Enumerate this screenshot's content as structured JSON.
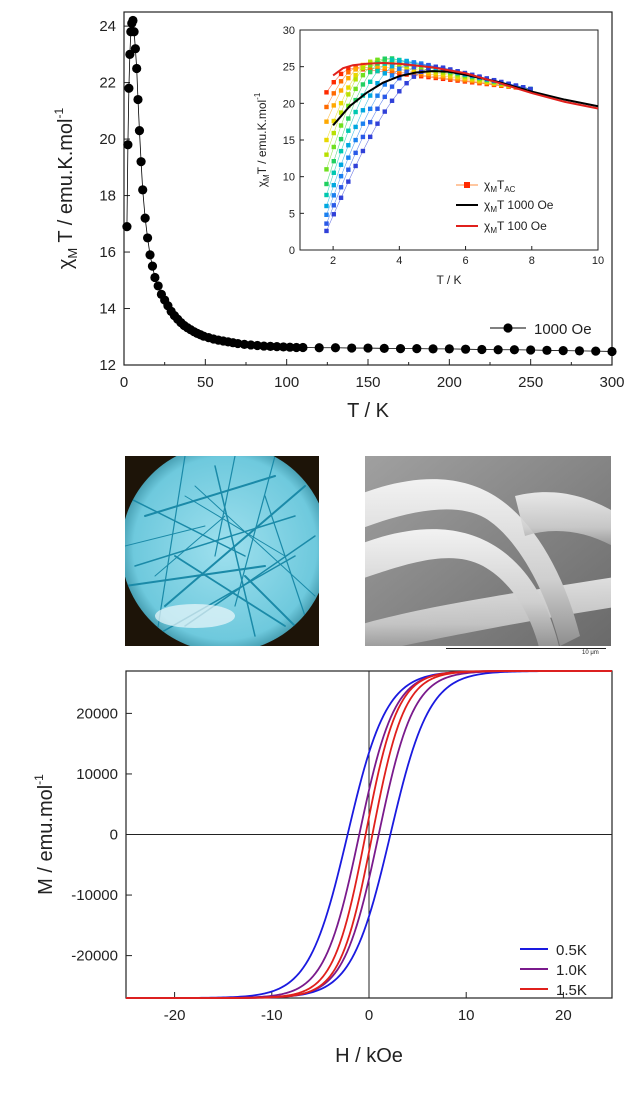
{
  "chart_data": [
    {
      "type": "scatter",
      "title": "",
      "xlabel": "T / K",
      "ylabel_main": "χ",
      "ylabel_sub": "M",
      "ylabel_rest": " T / emu.K.mol",
      "ylabel_sup": "-1",
      "xlim": [
        0,
        300
      ],
      "ylim": [
        12,
        24.5
      ],
      "xticks": [
        0,
        50,
        100,
        150,
        200,
        250,
        300
      ],
      "yticks": [
        12,
        14,
        16,
        18,
        20,
        22,
        24
      ],
      "legend_placement": "bottom-right",
      "series": [
        {
          "name": "1000 Oe",
          "color": "#000000",
          "points": [
            [
              1.8,
              16.9
            ],
            [
              2.4,
              19.8
            ],
            [
              3.0,
              21.8
            ],
            [
              3.6,
              23.0
            ],
            [
              4.2,
              23.8
            ],
            [
              4.8,
              24.1
            ],
            [
              5.5,
              24.2
            ],
            [
              6.2,
              23.8
            ],
            [
              7.0,
              23.2
            ],
            [
              7.8,
              22.5
            ],
            [
              8.6,
              21.4
            ],
            [
              9.5,
              20.3
            ],
            [
              10.5,
              19.2
            ],
            [
              11.5,
              18.2
            ],
            [
              13,
              17.2
            ],
            [
              14.5,
              16.5
            ],
            [
              16,
              15.9
            ],
            [
              17.5,
              15.5
            ],
            [
              19,
              15.1
            ],
            [
              21,
              14.8
            ],
            [
              23,
              14.5
            ],
            [
              25,
              14.3
            ],
            [
              27,
              14.1
            ],
            [
              29,
              13.9
            ],
            [
              31,
              13.75
            ],
            [
              33,
              13.62
            ],
            [
              35,
              13.5
            ],
            [
              37,
              13.4
            ],
            [
              39,
              13.32
            ],
            [
              41,
              13.25
            ],
            [
              43,
              13.18
            ],
            [
              45,
              13.12
            ],
            [
              47,
              13.07
            ],
            [
              49,
              13.02
            ],
            [
              52,
              12.97
            ],
            [
              55,
              12.92
            ],
            [
              58,
              12.88
            ],
            [
              61,
              12.85
            ],
            [
              64,
              12.82
            ],
            [
              67,
              12.79
            ],
            [
              70,
              12.76
            ],
            [
              74,
              12.73
            ],
            [
              78,
              12.71
            ],
            [
              82,
              12.69
            ],
            [
              86,
              12.67
            ],
            [
              90,
              12.66
            ],
            [
              94,
              12.65
            ],
            [
              98,
              12.64
            ],
            [
              102,
              12.63
            ],
            [
              106,
              12.62
            ],
            [
              110,
              12.62
            ],
            [
              120,
              12.61
            ],
            [
              130,
              12.61
            ],
            [
              140,
              12.6
            ],
            [
              150,
              12.6
            ],
            [
              160,
              12.59
            ],
            [
              170,
              12.58
            ],
            [
              180,
              12.58
            ],
            [
              190,
              12.57
            ],
            [
              200,
              12.57
            ],
            [
              210,
              12.56
            ],
            [
              220,
              12.55
            ],
            [
              230,
              12.54
            ],
            [
              240,
              12.54
            ],
            [
              250,
              12.53
            ],
            [
              260,
              12.52
            ],
            [
              270,
              12.51
            ],
            [
              280,
              12.5
            ],
            [
              290,
              12.49
            ],
            [
              300,
              12.48
            ]
          ]
        }
      ],
      "inset": {
        "xlabel": "T / K",
        "ylabel_main": "χ",
        "ylabel_sub": "M",
        "ylabel_rest": "T / emu.K.mol",
        "ylabel_sup": "-1",
        "xlim": [
          1,
          10
        ],
        "ylim": [
          0,
          30
        ],
        "xticks": [
          2,
          4,
          6,
          8,
          10
        ],
        "yticks": [
          0,
          5,
          10,
          15,
          20,
          25,
          30
        ],
        "legend_placement": "bottom-center",
        "legend": [
          {
            "main": "χ",
            "sub": "M",
            "rest": "T",
            "sub2": "AC",
            "kind": "squares"
          },
          {
            "main": "χ",
            "sub": "M",
            "rest": "T 1000 Oe",
            "kind": "line",
            "color": "#000000"
          },
          {
            "main": "χ",
            "sub": "M",
            "rest": "T 100 Oe",
            "kind": "line",
            "color": "#e0201c"
          }
        ],
        "ac_colors": [
          "#ff2a00",
          "#ff6a00",
          "#ffa800",
          "#e8d800",
          "#b8e000",
          "#6fe020",
          "#20d060",
          "#00c8b0",
          "#00a8e0",
          "#1a80f0",
          "#2a5ae8",
          "#3040d8"
        ],
        "ac_start": [
          21.5,
          19.5,
          17.5,
          15.0,
          13.0,
          11.0,
          9.0,
          7.5,
          6.0,
          4.8,
          3.6,
          2.6
        ],
        "ac_peak": [
          [
            2.6,
            24.8
          ],
          [
            2.8,
            25.0
          ],
          [
            3.0,
            25.3
          ],
          [
            3.2,
            25.6
          ],
          [
            3.3,
            25.9
          ],
          [
            3.5,
            26.1
          ],
          [
            3.7,
            26.2
          ],
          [
            3.9,
            26.0
          ],
          [
            4.2,
            25.8
          ],
          [
            4.5,
            25.6
          ],
          [
            4.8,
            25.3
          ],
          [
            5.2,
            25.0
          ]
        ],
        "curve_1000": [
          [
            2.0,
            17.0
          ],
          [
            2.5,
            19.6
          ],
          [
            3.0,
            21.4
          ],
          [
            3.5,
            22.8
          ],
          [
            4.0,
            23.7
          ],
          [
            4.5,
            24.2
          ],
          [
            5.0,
            24.4
          ],
          [
            5.5,
            24.3
          ],
          [
            6,
            23.9
          ],
          [
            7,
            22.9
          ],
          [
            8,
            21.6
          ],
          [
            9,
            20.5
          ],
          [
            10,
            19.6
          ]
        ],
        "curve_100": [
          [
            2.0,
            23.8
          ],
          [
            2.3,
            24.8
          ],
          [
            2.6,
            25.2
          ],
          [
            3.0,
            25.4
          ],
          [
            3.5,
            25.5
          ],
          [
            4,
            25.4
          ],
          [
            5,
            24.9
          ],
          [
            6,
            24.1
          ],
          [
            7,
            22.8
          ],
          [
            8,
            21.4
          ],
          [
            9,
            20.2
          ],
          [
            10,
            19.3
          ]
        ]
      }
    },
    {
      "type": "line",
      "title": "",
      "xlabel": "H / kOe",
      "ylabel": "M / emu.mol",
      "ylabel_sup": "-1",
      "xlim": [
        -25,
        25
      ],
      "ylim": [
        -27000,
        27000
      ],
      "xticks": [
        -20,
        -10,
        0,
        10,
        20
      ],
      "yticks": [
        -20000,
        -10000,
        0,
        10000,
        20000
      ],
      "legend_placement": "bottom-right",
      "series": [
        {
          "name": "0.5K",
          "color": "#1a1ae0",
          "coercivity": 2.2,
          "width": 4.0
        },
        {
          "name": "1.0K",
          "color": "#7a1a8c",
          "coercivity": 1.0,
          "width": 3.6
        },
        {
          "name": "1.5K",
          "color": "#e0201c",
          "coercivity": 0.35,
          "width": 3.3
        }
      ],
      "saturation": 27000
    }
  ],
  "images": [
    {
      "name": "optical-micrograph-crystals"
    },
    {
      "name": "sem-micrograph-fibers",
      "scale_label": "10 μm"
    }
  ]
}
